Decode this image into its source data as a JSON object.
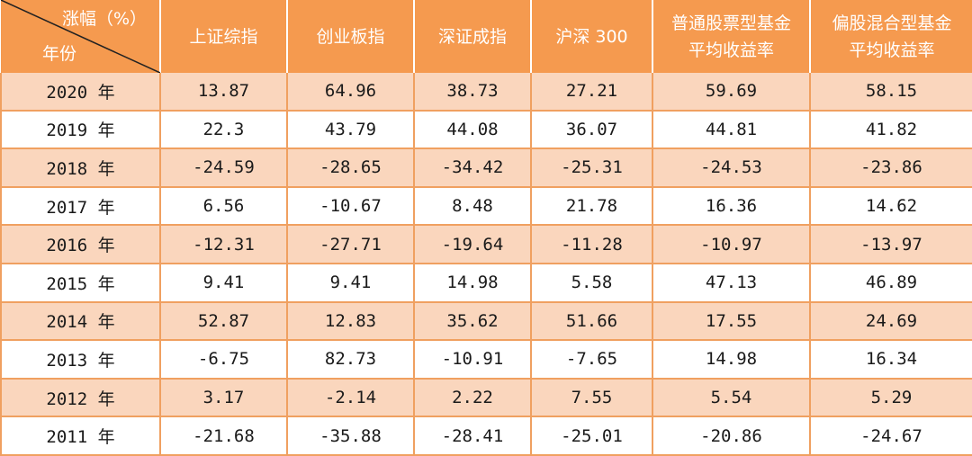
{
  "header": {
    "corner_top": "涨幅（%）",
    "corner_bottom": "年份",
    "columns": [
      "上证综指",
      "创业板指",
      "深证成指",
      "沪深 300",
      "普通股票型基金平均收益率",
      "偏股混合型基金平均收益率"
    ]
  },
  "rows": [
    {
      "year": "2020 年",
      "values": [
        "13.87",
        "64.96",
        "38.73",
        "27.21",
        "59.69",
        "58.15"
      ]
    },
    {
      "year": "2019 年",
      "values": [
        "22.3",
        "43.79",
        "44.08",
        "36.07",
        "44.81",
        "41.82"
      ]
    },
    {
      "year": "2018 年",
      "values": [
        "-24.59",
        "-28.65",
        "-34.42",
        "-25.31",
        "-24.53",
        "-23.86"
      ]
    },
    {
      "year": "2017 年",
      "values": [
        "6.56",
        "-10.67",
        "8.48",
        "21.78",
        "16.36",
        "14.62"
      ]
    },
    {
      "year": "2016 年",
      "values": [
        "-12.31",
        "-27.71",
        "-19.64",
        "-11.28",
        "-10.97",
        "-13.97"
      ]
    },
    {
      "year": "2015 年",
      "values": [
        "9.41",
        "9.41",
        "14.98",
        "5.58",
        "47.13",
        "46.89"
      ]
    },
    {
      "year": "2014 年",
      "values": [
        "52.87",
        "12.83",
        "35.62",
        "51.66",
        "17.55",
        "24.69"
      ]
    },
    {
      "year": "2013 年",
      "values": [
        "-6.75",
        "82.73",
        "-10.91",
        "-7.65",
        "14.98",
        "16.34"
      ]
    },
    {
      "year": "2012 年",
      "values": [
        "3.17",
        "-2.14",
        "2.22",
        "7.55",
        "5.54",
        "5.29"
      ]
    },
    {
      "year": "2011 年",
      "values": [
        "-21.68",
        "-35.88",
        "-28.41",
        "-25.01",
        "-20.86",
        "-24.67"
      ]
    }
  ],
  "colors": {
    "header_bg": "#f59a4f",
    "band_bg": "#fad6bd",
    "border": "#f0a060"
  }
}
